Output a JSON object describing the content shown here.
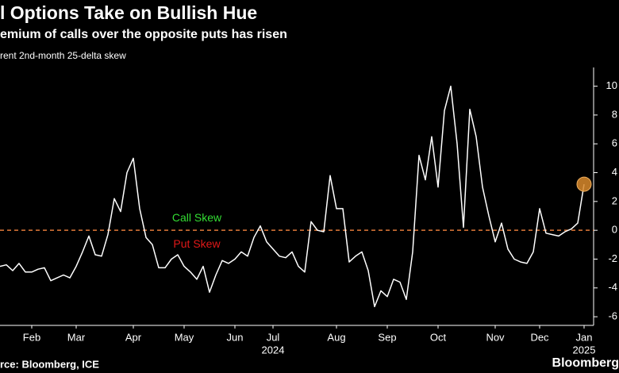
{
  "chart_data": {
    "type": "line",
    "title": "l Options Take on Bullish Hue",
    "subtitle": "emium of calls over the opposite puts has risen",
    "y_label": "rent 2nd-month 25-delta skew",
    "source": "rce: Bloomberg, ICE",
    "brand": "Bloomberg",
    "year_labels": [
      "2024",
      "2025"
    ],
    "annotations": [
      {
        "text": "Call Skew",
        "color": "#33dd33"
      },
      {
        "text": "Put Skew",
        "color": "#e01818"
      }
    ],
    "reference_line": {
      "value": 0,
      "color": "#e07a3a"
    },
    "highlight_color": "#d98a2b",
    "categories": [
      null,
      null,
      null,
      null,
      null,
      "Feb",
      null,
      null,
      null,
      null,
      null,
      null,
      "Mar",
      null,
      null,
      null,
      null,
      null,
      null,
      null,
      null,
      "Apr",
      null,
      null,
      null,
      null,
      null,
      null,
      null,
      "May",
      null,
      null,
      null,
      null,
      null,
      null,
      null,
      "Jun",
      null,
      null,
      null,
      null,
      null,
      "Jul",
      null,
      null,
      null,
      null,
      null,
      null,
      null,
      null,
      null,
      "Aug",
      null,
      null,
      null,
      null,
      null,
      null,
      null,
      "Sep",
      null,
      null,
      null,
      null,
      null,
      null,
      null,
      "Oct",
      null,
      null,
      null,
      null,
      null,
      null,
      null,
      null,
      "Nov",
      null,
      null,
      null,
      null,
      null,
      null,
      "Dec",
      null,
      null,
      null,
      null,
      null,
      null,
      "Jan"
    ],
    "series": [
      {
        "name": "25-delta skew",
        "color": "#ffffff",
        "values": [
          -2.5,
          -2.4,
          -2.8,
          -2.3,
          -2.9,
          -2.9,
          -2.7,
          -2.6,
          -3.5,
          -3.3,
          -3.1,
          -3.3,
          -2.5,
          -1.5,
          -0.4,
          -1.7,
          -1.8,
          -0.3,
          2.2,
          1.3,
          4,
          5,
          1.5,
          -0.5,
          -1,
          -2.6,
          -2.6,
          -2,
          -1.7,
          -2.5,
          -2.9,
          -3.4,
          -2.5,
          -4.3,
          -3.1,
          -2.1,
          -2.3,
          -2,
          -1.5,
          -1.8,
          -0.5,
          0.3,
          -0.8,
          -1.3,
          -1.8,
          -1.9,
          -1.5,
          -2.5,
          -2.9,
          0.6,
          0,
          -0.1,
          3.8,
          1.5,
          1.5,
          -2.2,
          -1.8,
          -1.5,
          -2.8,
          -5.3,
          -4.2,
          -4.6,
          -3.4,
          -3.6,
          -4.8,
          -1.5,
          5.2,
          3.5,
          6.5,
          3,
          8.3,
          10,
          6,
          0.2,
          8.4,
          6.5,
          3,
          1,
          -0.8,
          0.5,
          -1.3,
          -2,
          -2.2,
          -2.3,
          -1.5,
          1.5,
          -0.2,
          -0.3,
          -0.4,
          -0.1,
          0.1,
          0.5,
          3.2
        ]
      }
    ],
    "ylim": [
      -6.6,
      11.3
    ],
    "yticks": [
      -6,
      -4,
      -2,
      0,
      2,
      4,
      6,
      8,
      10
    ]
  }
}
